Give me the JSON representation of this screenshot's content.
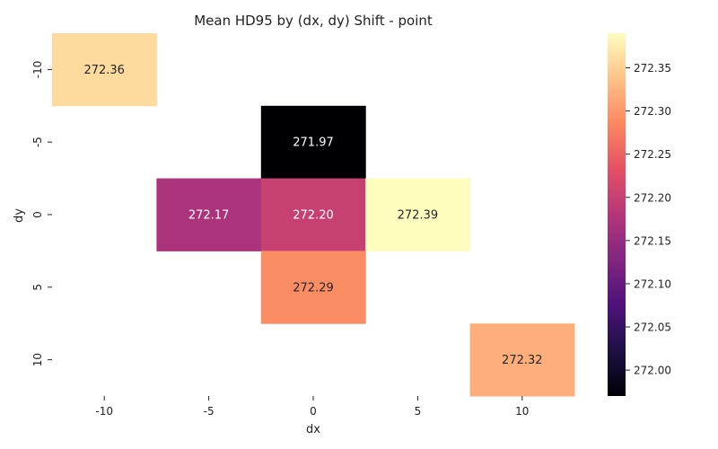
{
  "chart_data": {
    "type": "heatmap",
    "title": "Mean HD95 by (dx, dy) Shift - point",
    "xlabel": "dx",
    "ylabel": "dy",
    "x_categories": [
      "-10",
      "-5",
      "0",
      "5",
      "10"
    ],
    "y_categories": [
      "-10",
      "-5",
      "0",
      "5",
      "10"
    ],
    "cells": [
      {
        "dx": "-10",
        "dy": "-10",
        "value": 272.36,
        "label": "272.36"
      },
      {
        "dx": "0",
        "dy": "-5",
        "value": 271.97,
        "label": "271.97"
      },
      {
        "dx": "-5",
        "dy": "0",
        "value": 272.17,
        "label": "272.17"
      },
      {
        "dx": "0",
        "dy": "0",
        "value": 272.2,
        "label": "272.20"
      },
      {
        "dx": "5",
        "dy": "0",
        "value": 272.39,
        "label": "272.39"
      },
      {
        "dx": "0",
        "dy": "5",
        "value": 272.29,
        "label": "272.29"
      },
      {
        "dx": "10",
        "dy": "10",
        "value": 272.32,
        "label": "272.32"
      }
    ],
    "colormap": "magma",
    "colorbar": {
      "vmin": 271.97,
      "vmax": 272.39,
      "ticks": [
        "272.00",
        "272.05",
        "272.10",
        "272.15",
        "272.20",
        "272.25",
        "272.30",
        "272.35"
      ]
    },
    "grid": false
  }
}
